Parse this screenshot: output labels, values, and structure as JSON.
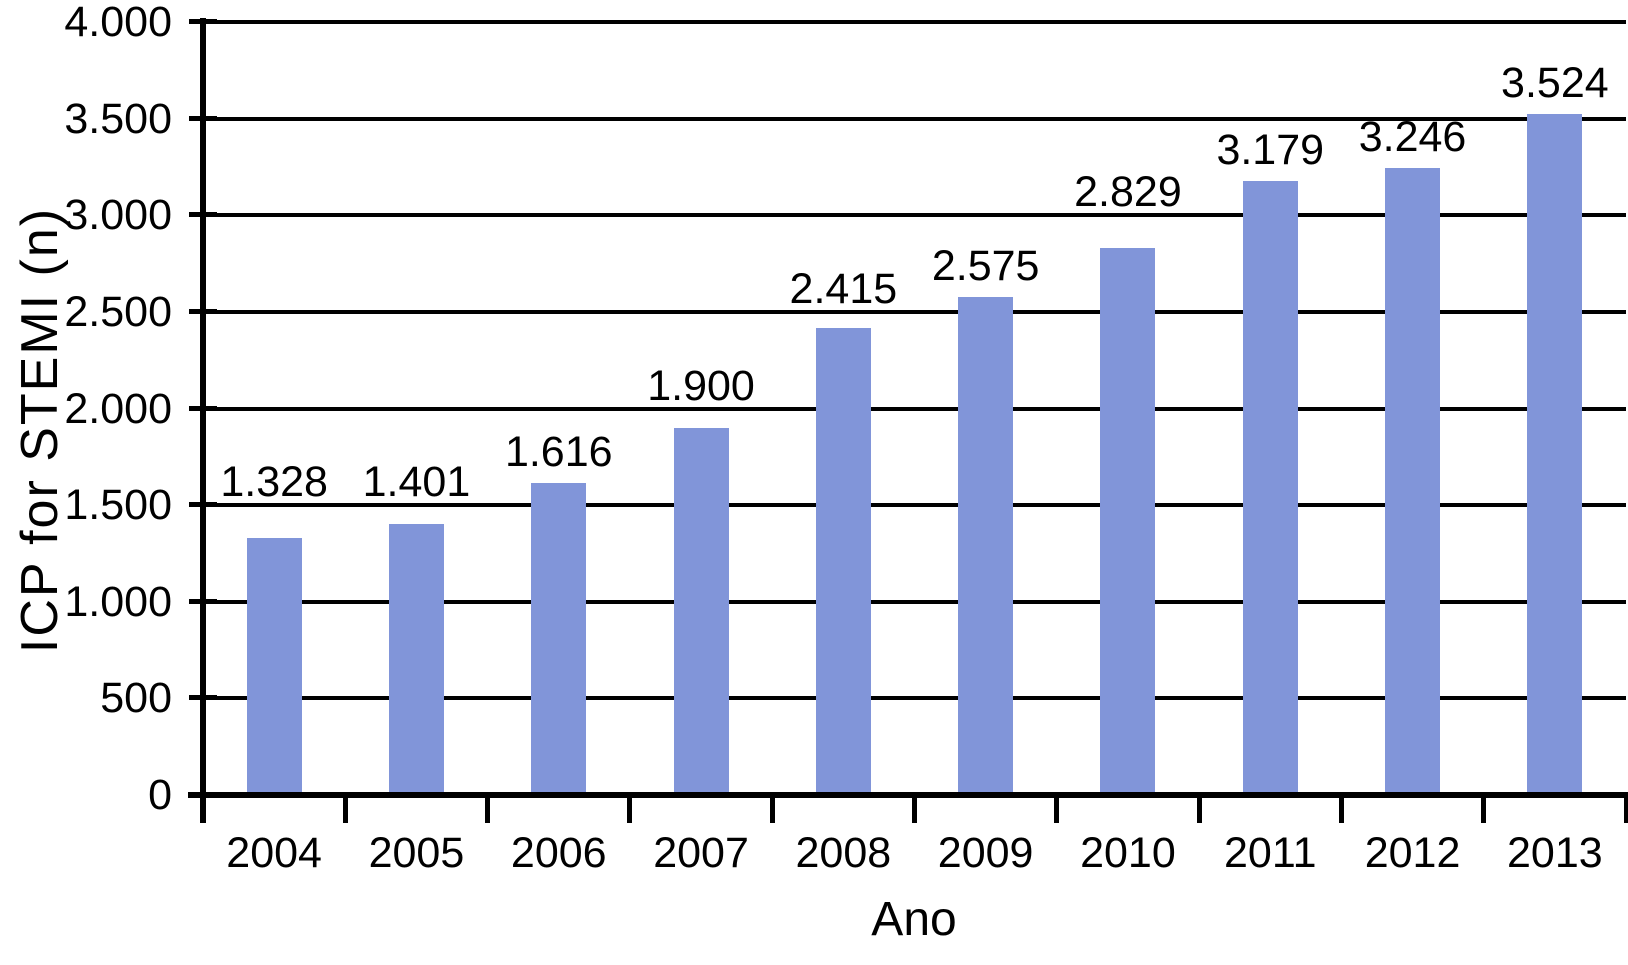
{
  "chart_data": {
    "type": "bar",
    "title": "",
    "xlabel": "Ano",
    "ylabel": "ICP for STEMI (n)",
    "categories": [
      "2004",
      "2005",
      "2006",
      "2007",
      "2008",
      "2009",
      "2010",
      "2011",
      "2012",
      "2013"
    ],
    "values": [
      1328,
      1401,
      1616,
      1900,
      2415,
      2575,
      2829,
      3179,
      3246,
      3524
    ],
    "value_labels": [
      "1.328",
      "1.401",
      "1.616",
      "1.900",
      "2.415",
      "2.575",
      "2.829",
      "3.179",
      "3.246",
      "3.524"
    ],
    "y_tick_values": [
      0,
      500,
      1000,
      1500,
      2000,
      2500,
      3000,
      3500,
      4000
    ],
    "y_tick_labels": [
      "0",
      "500",
      "1.000",
      "1.500",
      "2.000",
      "2.500",
      "3.000",
      "3.500",
      "4.000"
    ],
    "ylim": [
      0,
      4000
    ],
    "grid": "horizontal",
    "legend": "none",
    "bar_color": "#8195d9",
    "axis_color": "#000000",
    "text_color": "#000000",
    "background": "#ffffff"
  }
}
